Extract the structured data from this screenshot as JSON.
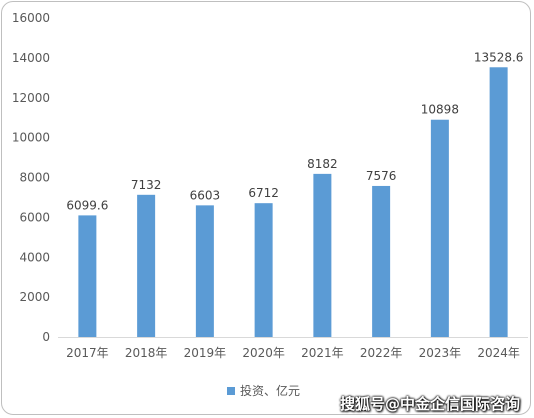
{
  "chart_data": {
    "type": "bar",
    "categories": [
      "2017年",
      "2018年",
      "2019年",
      "2020年",
      "2021年",
      "2022年",
      "2023年",
      "2024年"
    ],
    "series": [
      {
        "name": "投资、亿元",
        "values": [
          6099.6,
          7132,
          6603,
          6712,
          8182,
          7576,
          10898,
          13528.6
        ]
      }
    ],
    "data_labels": [
      "6099.6",
      "7132",
      "6603",
      "6712",
      "8182",
      "7576",
      "10898",
      "13528.6"
    ],
    "y_ticks": [
      "0",
      "2000",
      "4000",
      "6000",
      "8000",
      "10000",
      "12000",
      "14000",
      "16000"
    ],
    "ylim": [
      0,
      16000
    ],
    "title": "",
    "xlabel": "",
    "ylabel": "",
    "grid": false,
    "legend_position": "bottom",
    "bar_color": "#5b9bd5"
  },
  "watermark": "搜狐号@中金企信国际咨询"
}
